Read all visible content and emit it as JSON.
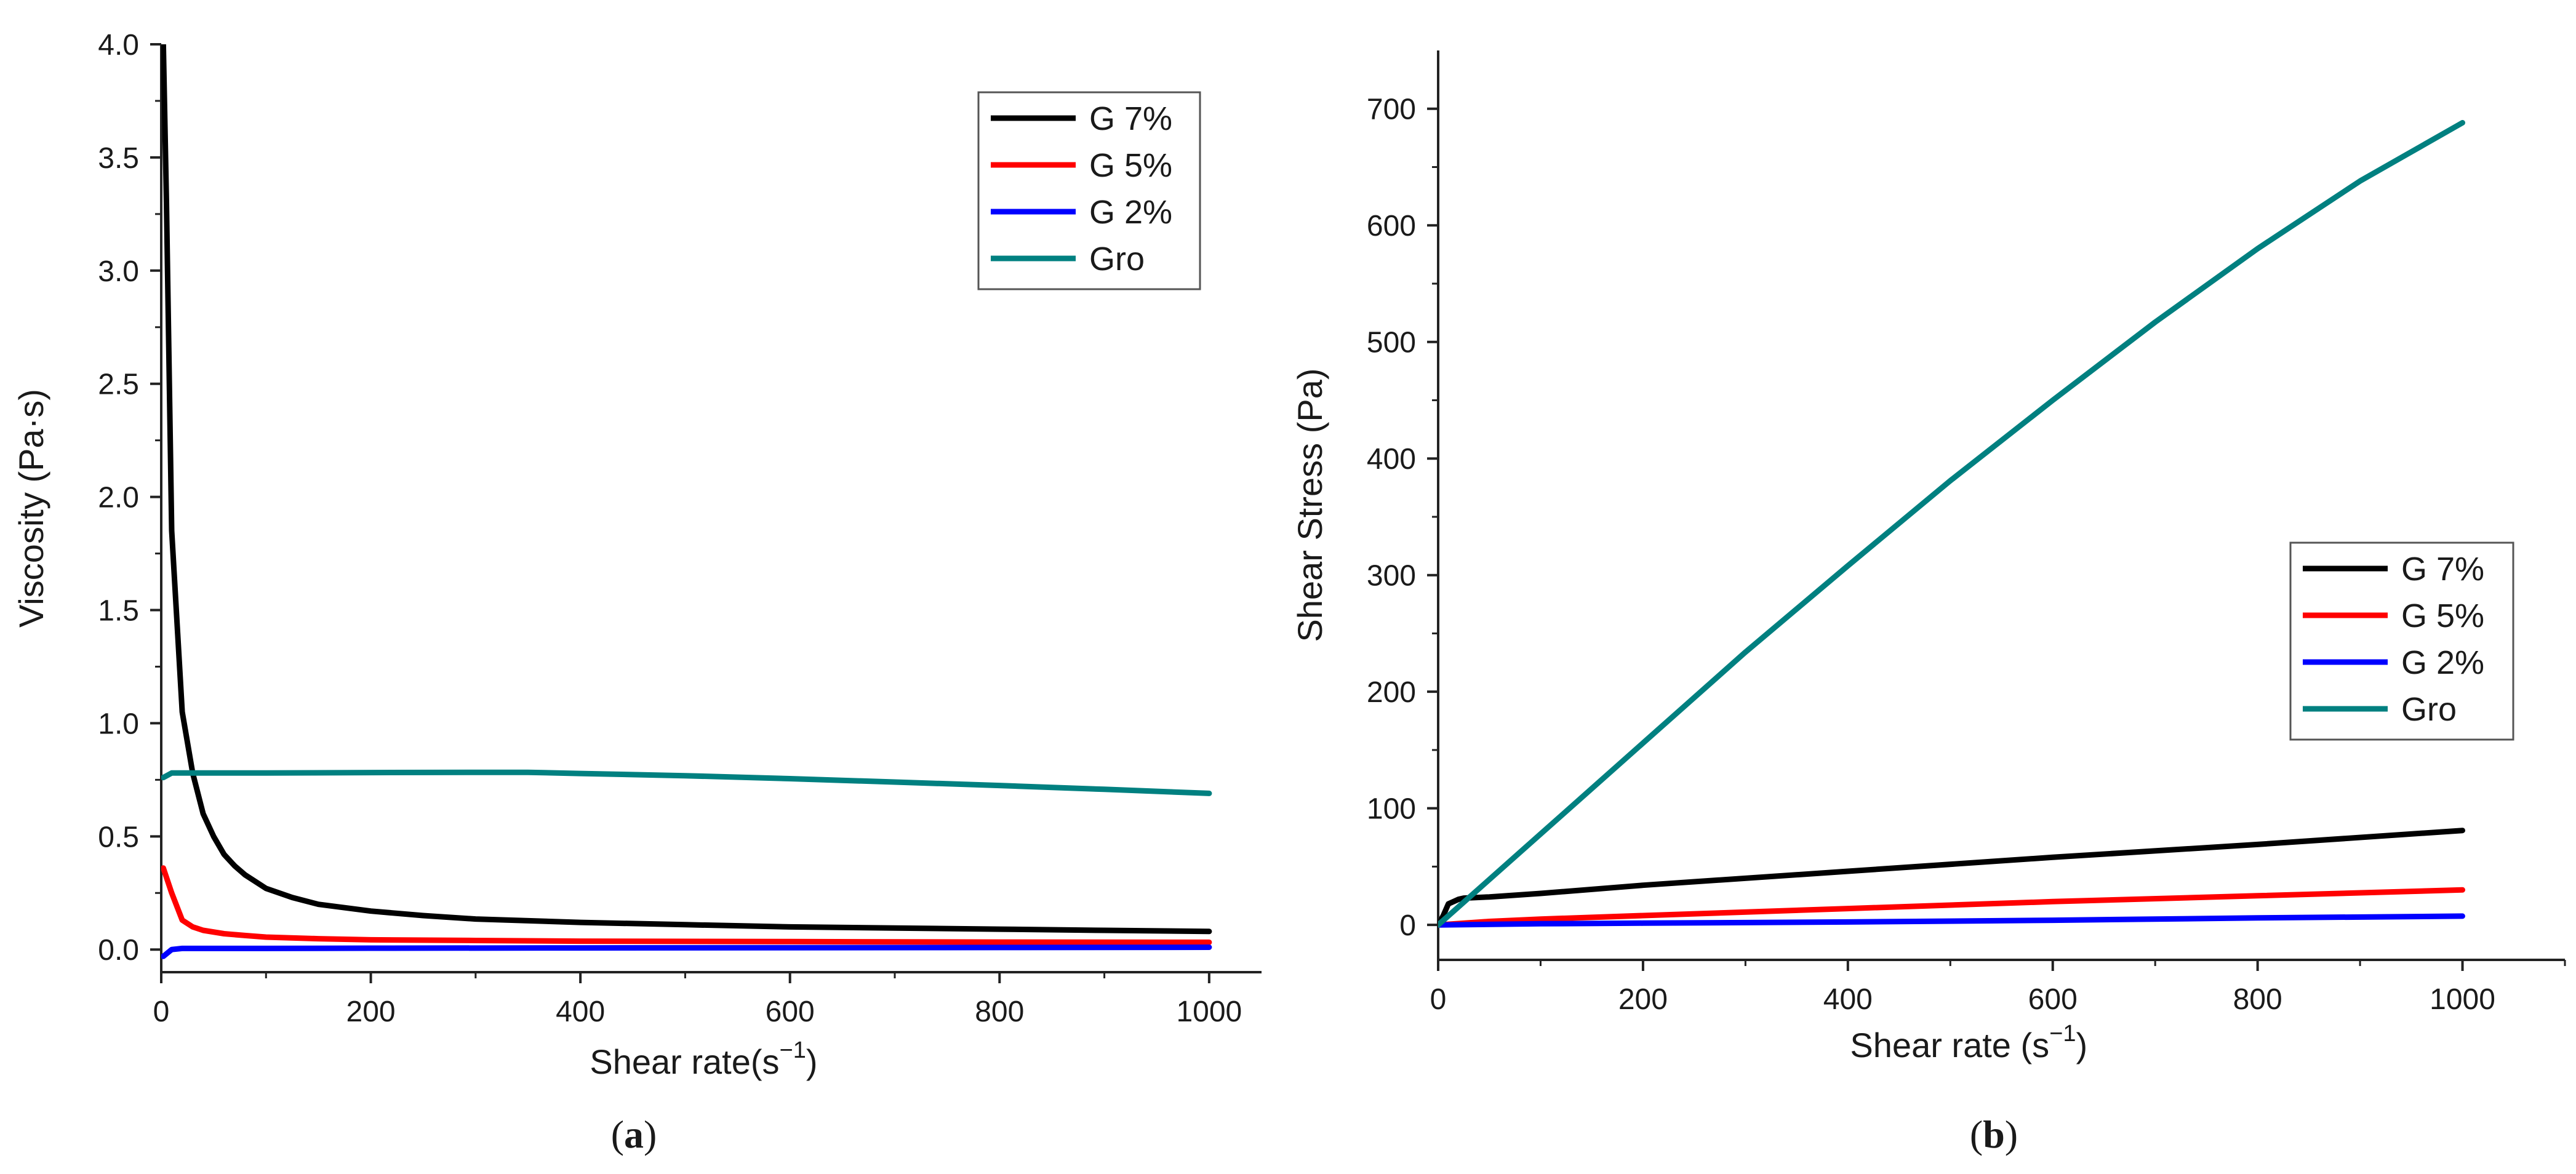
{
  "colors": {
    "G7": "#000000",
    "G5": "#ff0000",
    "G2": "#0000ff",
    "Gro": "#008080"
  },
  "chart_data": [
    {
      "type": "line",
      "caption": "a",
      "xlabel": "Shear  rate(s",
      "xlabel_sup": "−1",
      "xlabel_end": ")",
      "ylabel": "Viscosity (Pa·s)",
      "xlim": [
        0,
        1050
      ],
      "ylim": [
        -0.1,
        4.0
      ],
      "xticks": [
        0,
        200,
        400,
        600,
        800,
        1000
      ],
      "xtick_labels": [
        "0",
        "200",
        "400",
        "600",
        "800",
        "1000"
      ],
      "yticks": [
        0.0,
        0.5,
        1.0,
        1.5,
        2.0,
        2.5,
        3.0,
        3.5,
        4.0
      ],
      "ytick_labels": [
        "0.0",
        "0.5",
        "1.0",
        "1.5",
        "2.0",
        "2.5",
        "3.0",
        "3.5",
        "4.0"
      ],
      "legend_position": "top-right",
      "series": [
        {
          "name": "G 7%",
          "key": "G7",
          "x": [
            2,
            5,
            10,
            20,
            30,
            40,
            50,
            60,
            70,
            80,
            100,
            125,
            150,
            200,
            250,
            300,
            400,
            500,
            600,
            700,
            800,
            900,
            1000
          ],
          "y": [
            4.0,
            3.3,
            1.85,
            1.05,
            0.78,
            0.6,
            0.5,
            0.42,
            0.37,
            0.33,
            0.27,
            0.23,
            0.2,
            0.17,
            0.15,
            0.135,
            0.12,
            0.11,
            0.1,
            0.095,
            0.09,
            0.085,
            0.08
          ]
        },
        {
          "name": "G 5%",
          "key": "G5",
          "x": [
            2,
            10,
            20,
            30,
            40,
            60,
            80,
            100,
            150,
            200,
            300,
            400,
            600,
            800,
            1000
          ],
          "y": [
            0.36,
            0.25,
            0.13,
            0.1,
            0.085,
            0.07,
            0.062,
            0.055,
            0.048,
            0.043,
            0.04,
            0.037,
            0.035,
            0.033,
            0.032
          ]
        },
        {
          "name": "G 2%",
          "key": "G2",
          "x": [
            2,
            10,
            20,
            50,
            100,
            200,
            400,
            600,
            800,
            1000
          ],
          "y": [
            -0.03,
            0.0,
            0.005,
            0.005,
            0.005,
            0.006,
            0.007,
            0.008,
            0.009,
            0.01
          ]
        },
        {
          "name": "Gro",
          "key": "Gro",
          "x": [
            2,
            10,
            20,
            50,
            100,
            200,
            300,
            350,
            400,
            500,
            600,
            700,
            800,
            900,
            1000
          ],
          "y": [
            0.76,
            0.78,
            0.78,
            0.78,
            0.78,
            0.782,
            0.783,
            0.783,
            0.778,
            0.768,
            0.755,
            0.74,
            0.725,
            0.708,
            0.69
          ]
        }
      ]
    },
    {
      "type": "line",
      "caption": "b",
      "xlabel": "Shear rate (s",
      "xlabel_sup": "−1",
      "xlabel_end": ")",
      "ylabel": "Shear Stress (Pa)",
      "xlim": [
        0,
        1100
      ],
      "ylim": [
        -30,
        750
      ],
      "xticks": [
        0,
        200,
        400,
        600,
        800,
        1000
      ],
      "xtick_labels": [
        "0",
        "200",
        "400",
        "600",
        "800",
        "1000"
      ],
      "yticks": [
        0,
        100,
        200,
        300,
        400,
        500,
        600,
        700
      ],
      "ytick_labels": [
        "0",
        "100",
        "200",
        "300",
        "400",
        "500",
        "600",
        "700"
      ],
      "legend_position": "center-right",
      "series": [
        {
          "name": "G 7%",
          "key": "G7",
          "x": [
            0,
            5,
            10,
            15,
            20,
            25,
            50,
            100,
            200,
            400,
            600,
            800,
            1000
          ],
          "y": [
            0,
            8,
            18,
            20,
            22,
            23,
            24,
            27,
            34,
            46,
            58,
            69,
            81
          ]
        },
        {
          "name": "G 5%",
          "key": "G5",
          "x": [
            0,
            50,
            100,
            200,
            400,
            600,
            800,
            1000
          ],
          "y": [
            0,
            3,
            5,
            8,
            14,
            20,
            25,
            30
          ]
        },
        {
          "name": "G 2%",
          "key": "G2",
          "x": [
            0,
            100,
            200,
            400,
            600,
            800,
            1000
          ],
          "y": [
            0,
            1,
            1.5,
            2.5,
            4,
            6,
            7.5
          ]
        },
        {
          "name": "Gro",
          "key": "Gro",
          "x": [
            0,
            100,
            200,
            300,
            400,
            500,
            600,
            700,
            800,
            900,
            1000
          ],
          "y": [
            0,
            78,
            156,
            234,
            308,
            381,
            450,
            517,
            580,
            638,
            688
          ]
        }
      ]
    }
  ]
}
